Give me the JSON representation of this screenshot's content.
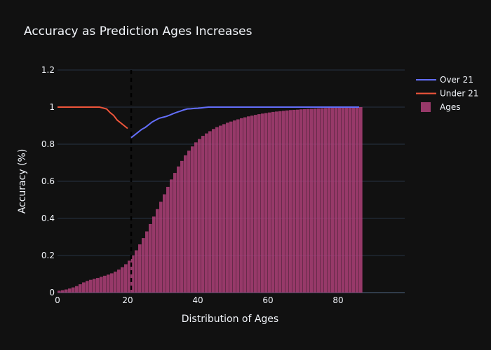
{
  "chart_data": {
    "type": "line",
    "title": "Accuracy as Prediction Ages Increases",
    "xlabel": "Distribution of Ages",
    "ylabel": "Accuracy (%)",
    "xlim": [
      0,
      99
    ],
    "ylim": [
      0,
      1.2
    ],
    "x_ticks": [
      "0",
      "20",
      "40",
      "60",
      "80"
    ],
    "y_ticks": [
      "0",
      "0.2",
      "0.4",
      "0.6",
      "0.8",
      "1",
      "1.2"
    ],
    "grid": true,
    "legend_position": "top-right",
    "threshold_line": {
      "x": 21,
      "style": "dashed",
      "color": "#000000"
    },
    "series": [
      {
        "name": "Over 21",
        "type": "line",
        "color": "#636efa",
        "x": [
          21,
          22,
          23,
          24,
          25,
          26,
          27,
          28,
          29,
          30,
          31,
          32,
          33,
          34,
          35,
          36,
          37,
          38,
          39,
          40,
          41,
          42,
          43,
          50,
          60,
          70,
          80,
          86
        ],
        "y": [
          0.835,
          0.85,
          0.865,
          0.88,
          0.89,
          0.905,
          0.92,
          0.93,
          0.94,
          0.945,
          0.95,
          0.957,
          0.965,
          0.972,
          0.978,
          0.985,
          0.99,
          0.991,
          0.993,
          0.994,
          0.996,
          0.998,
          1.0,
          1.0,
          1.0,
          1.0,
          1.0,
          1.0
        ]
      },
      {
        "name": "Under 21",
        "type": "line",
        "color": "#ef553b",
        "x": [
          0,
          2,
          4,
          6,
          8,
          10,
          11,
          12,
          13,
          14,
          15,
          16,
          17,
          18,
          19,
          20
        ],
        "y": [
          1.0,
          1.0,
          1.0,
          1.0,
          1.0,
          1.0,
          1.0,
          1.0,
          0.995,
          0.99,
          0.97,
          0.955,
          0.93,
          0.915,
          0.9,
          0.885
        ]
      },
      {
        "name": "Ages",
        "type": "bar-cumulative",
        "color": "#b5427c",
        "x_start": 0,
        "bin_width": 1,
        "values": [
          0.01,
          0.013,
          0.017,
          0.022,
          0.028,
          0.035,
          0.045,
          0.055,
          0.063,
          0.069,
          0.074,
          0.079,
          0.085,
          0.091,
          0.097,
          0.104,
          0.113,
          0.124,
          0.137,
          0.153,
          0.172,
          0.2,
          0.228,
          0.26,
          0.294,
          0.33,
          0.37,
          0.41,
          0.45,
          0.49,
          0.53,
          0.57,
          0.61,
          0.645,
          0.68,
          0.71,
          0.74,
          0.765,
          0.788,
          0.81,
          0.828,
          0.845,
          0.858,
          0.87,
          0.882,
          0.892,
          0.9,
          0.908,
          0.916,
          0.922,
          0.928,
          0.934,
          0.94,
          0.945,
          0.95,
          0.954,
          0.958,
          0.962,
          0.965,
          0.968,
          0.971,
          0.974,
          0.976,
          0.978,
          0.98,
          0.982,
          0.984,
          0.985,
          0.986,
          0.988,
          0.989,
          0.99,
          0.991,
          0.992,
          0.993,
          0.994,
          0.995,
          0.996,
          0.996,
          0.997,
          0.998,
          0.998,
          0.999,
          0.999,
          1.0,
          1.0,
          1.0
        ]
      }
    ]
  }
}
